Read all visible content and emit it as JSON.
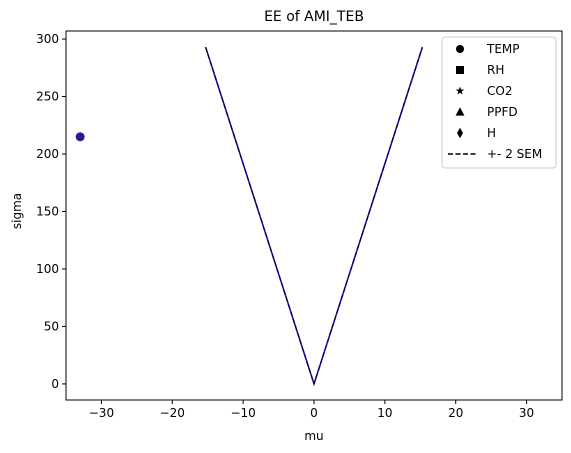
{
  "chart_data": {
    "type": "scatter",
    "title": "EE of AMI_TEB",
    "xlabel": "mu",
    "ylabel": "sigma",
    "xlim": [
      -35,
      35
    ],
    "ylim": [
      -14,
      307
    ],
    "x_ticks": [
      -30,
      -20,
      -10,
      0,
      10,
      20,
      30
    ],
    "y_ticks": [
      0,
      50,
      100,
      150,
      200,
      250,
      300
    ],
    "grid": false,
    "legend_position": "top-right",
    "points": [
      {
        "x": -33,
        "y": 215,
        "marker": "circle",
        "color": "#2a1a8c"
      }
    ],
    "sem_line": {
      "label": "+- 2 SEM",
      "style": "dashed",
      "colors": [
        "#000000",
        "#2200aa"
      ],
      "points": [
        [
          -15.3,
          293
        ],
        [
          0,
          0
        ],
        [
          15.3,
          293
        ]
      ]
    },
    "legend": [
      {
        "label": "TEMP",
        "marker": "circle"
      },
      {
        "label": "RH",
        "marker": "square"
      },
      {
        "label": "CO2",
        "marker": "star"
      },
      {
        "label": "PPFD",
        "marker": "triangle"
      },
      {
        "label": "H",
        "marker": "diamond"
      },
      {
        "label": "+- 2 SEM",
        "marker": "dashed-line"
      }
    ]
  }
}
